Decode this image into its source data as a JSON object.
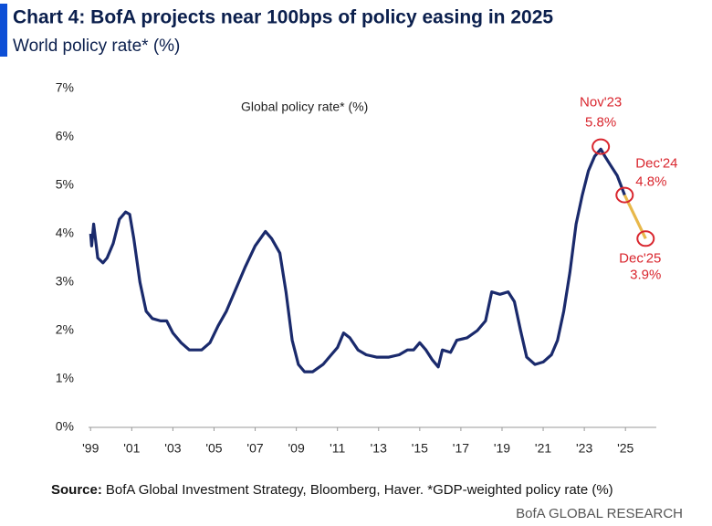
{
  "chart_data": {
    "type": "line",
    "title": "Chart 4: BofA projects near 100bps of policy easing in 2025",
    "subtitle": "World policy rate* (%)",
    "series_label": "Global policy rate* (%)",
    "source": {
      "label": "Source:",
      "text": "BofA Global Investment Strategy, Bloomberg, Haver. *GDP-weighted policy rate (%)"
    },
    "branding": "BofA GLOBAL RESEARCH",
    "xlim": [
      1998.9,
      2026.5
    ],
    "ylim": [
      0,
      7
    ],
    "grid": false,
    "xticks": [
      {
        "value": 1999,
        "label": "'99"
      },
      {
        "value": 2001,
        "label": "'01"
      },
      {
        "value": 2003,
        "label": "'03"
      },
      {
        "value": 2005,
        "label": "'05"
      },
      {
        "value": 2007,
        "label": "'07"
      },
      {
        "value": 2009,
        "label": "'09"
      },
      {
        "value": 2011,
        "label": "'11"
      },
      {
        "value": 2013,
        "label": "'13"
      },
      {
        "value": 2015,
        "label": "'15"
      },
      {
        "value": 2017,
        "label": "'17"
      },
      {
        "value": 2019,
        "label": "'19"
      },
      {
        "value": 2021,
        "label": "'21"
      },
      {
        "value": 2023,
        "label": "'23"
      },
      {
        "value": 2025,
        "label": "'25"
      }
    ],
    "yticks": [
      {
        "value": 0,
        "label": "0%"
      },
      {
        "value": 1,
        "label": "1%"
      },
      {
        "value": 2,
        "label": "2%"
      },
      {
        "value": 3,
        "label": "3%"
      },
      {
        "value": 4,
        "label": "4%"
      },
      {
        "value": 5,
        "label": "5%"
      },
      {
        "value": 6,
        "label": "6%"
      },
      {
        "value": 7,
        "label": "7%"
      }
    ],
    "series": [
      {
        "color": "#1a2a6c",
        "x": [
          1999.0,
          1999.05,
          1999.15,
          1999.35,
          1999.6,
          1999.8,
          2000.1,
          2000.4,
          2000.7,
          2000.9,
          2001.1,
          2001.4,
          2001.7,
          2002.0,
          2002.4,
          2002.7,
          2003.0,
          2003.4,
          2003.8,
          2004.4,
          2004.8,
          2005.2,
          2005.6,
          2006.0,
          2006.5,
          2007.0,
          2007.5,
          2007.8,
          2008.2,
          2008.5,
          2008.8,
          2009.1,
          2009.4,
          2009.8,
          2010.3,
          2010.7,
          2011.0,
          2011.3,
          2011.6,
          2012.0,
          2012.4,
          2012.9,
          2013.5,
          2014.0,
          2014.4,
          2014.7,
          2015.0,
          2015.3,
          2015.6,
          2015.9,
          2016.1,
          2016.5,
          2016.8,
          2017.3,
          2017.8,
          2018.2,
          2018.5,
          2018.9,
          2019.3,
          2019.6,
          2019.9,
          2020.2,
          2020.6,
          2021.0,
          2021.4,
          2021.7,
          2022.0,
          2022.3,
          2022.6,
          2022.9,
          2023.2,
          2023.5,
          2023.8,
          2024.0,
          2024.3,
          2024.6,
          2024.96
        ],
        "values": [
          4.0,
          3.75,
          4.2,
          3.5,
          3.4,
          3.5,
          3.8,
          4.3,
          4.45,
          4.4,
          3.9,
          3.0,
          2.4,
          2.25,
          2.2,
          2.2,
          1.95,
          1.75,
          1.6,
          1.6,
          1.75,
          2.1,
          2.4,
          2.8,
          3.3,
          3.75,
          4.05,
          3.9,
          3.6,
          2.8,
          1.8,
          1.3,
          1.15,
          1.15,
          1.3,
          1.5,
          1.65,
          1.95,
          1.85,
          1.6,
          1.5,
          1.45,
          1.45,
          1.5,
          1.6,
          1.6,
          1.75,
          1.6,
          1.4,
          1.25,
          1.6,
          1.55,
          1.8,
          1.85,
          2.0,
          2.2,
          2.8,
          2.75,
          2.8,
          2.6,
          2.0,
          1.45,
          1.3,
          1.35,
          1.5,
          1.8,
          2.4,
          3.2,
          4.2,
          4.8,
          5.3,
          5.6,
          5.75,
          5.6,
          5.4,
          5.2,
          4.8
        ]
      },
      {
        "color": "#e8b84a",
        "x": [
          2024.96,
          2025.98
        ],
        "values": [
          4.8,
          3.9
        ]
      }
    ],
    "annotation_color": "#d9262e",
    "annotations": [
      {
        "label": "Nov'23",
        "x": 2023.8,
        "value": 5.8,
        "value_label": "5.8%"
      },
      {
        "label": "Dec'24",
        "x": 2024.96,
        "value": 4.8,
        "value_label": "4.8%"
      },
      {
        "label": "Dec'25",
        "x": 2025.98,
        "value": 3.9,
        "value_label": "3.9%"
      }
    ]
  }
}
